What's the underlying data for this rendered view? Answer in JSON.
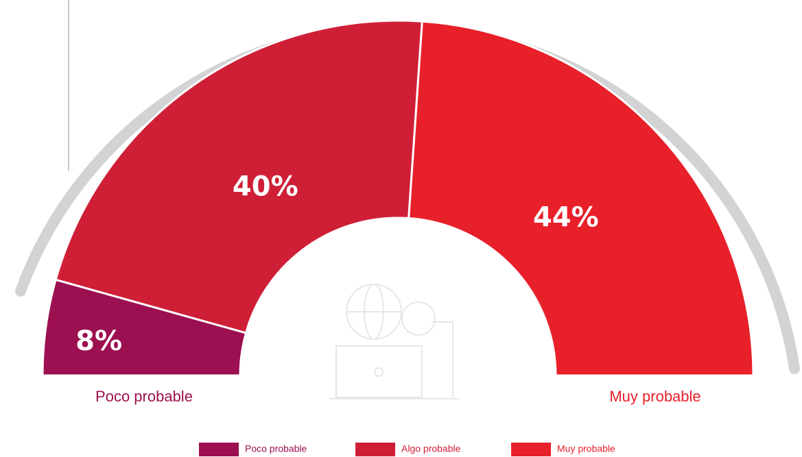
{
  "chart_data": {
    "type": "half-donut",
    "categories": [
      "Poco probable",
      "Algo probable",
      "Muy probable"
    ],
    "values": [
      8,
      40,
      44
    ],
    "value_labels": [
      "8%",
      "40%",
      "44%"
    ],
    "colors": [
      "#9c0f50",
      "#cf1f37",
      "#e8202a"
    ]
  }
}
